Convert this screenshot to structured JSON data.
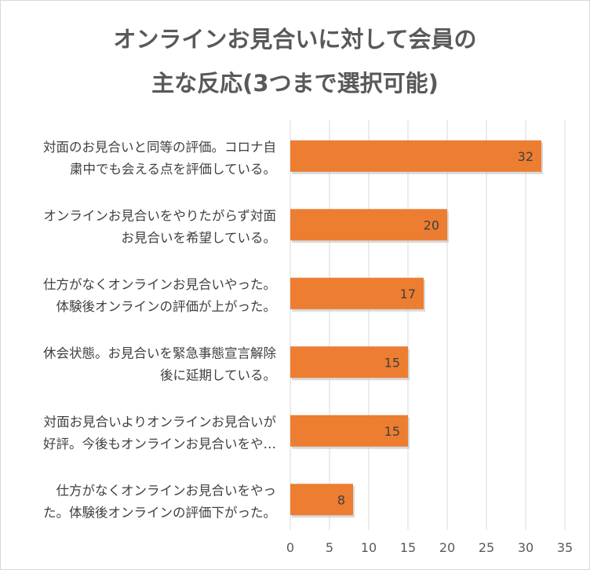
{
  "chart_data": {
    "type": "bar",
    "orientation": "horizontal",
    "title_lines": [
      "オンラインお見合いに対して会員の",
      "主な反応(3つまで選択可能)"
    ],
    "categories": [
      [
        "対面のお見合いと同等の評価。コロナ自",
        "粛中でも会える点を評価している。"
      ],
      [
        "オンラインお見合いをやりたがらず対面",
        "お見合いを希望している。"
      ],
      [
        "仕方がなくオンラインお見合いやった。",
        "体験後オンラインの評価が上がった。"
      ],
      [
        "休会状態。お見合いを緊急事態宣言解除",
        "後に延期している。"
      ],
      [
        "対面お見合いよりオンラインお見合いが",
        "好評。今後もオンラインお見合いをや…"
      ],
      [
        "仕方がなくオンラインお見合いをやっ",
        "た。体験後オンラインの評価下がった。"
      ]
    ],
    "values": [
      32,
      20,
      17,
      15,
      15,
      8
    ],
    "xlim": [
      0,
      35
    ],
    "xticks": [
      0,
      5,
      10,
      15,
      20,
      25,
      30,
      35
    ],
    "grid": true,
    "legend": "none",
    "bar_color": "#ed7d31"
  }
}
